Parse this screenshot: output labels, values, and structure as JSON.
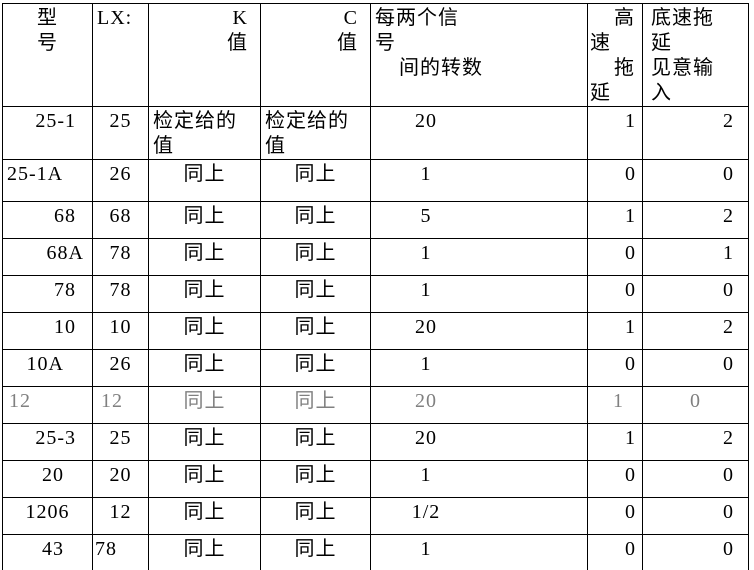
{
  "colors": {
    "text": "#000000",
    "muted_row_text": "#808080",
    "border": "#000000",
    "background": "#ffffff"
  },
  "table": {
    "headers": [
      {
        "t": "型\n号",
        "a": "c"
      },
      {
        "t": "LX:",
        "a": "l4"
      },
      {
        "t": "K\n值",
        "a": "r12"
      },
      {
        "t": "C\n值",
        "a": "r12"
      },
      {
        "t": "每两个信\n号\n    间的转数",
        "a": "l4"
      },
      {
        "t": "    高\n速\n    拖\n延",
        "a": "l2"
      },
      {
        "t": "底速拖\n延\n见意输\n入",
        "a": "l8"
      }
    ],
    "rows": [
      {
        "cells": [
          "25-1",
          "25",
          {
            "t": "检定给的\n值",
            "a": "l4"
          },
          {
            "t": "检定给的\n值",
            "a": "l4"
          },
          "20",
          "1",
          "2"
        ]
      },
      {
        "cells": [
          {
            "t": "25-1A",
            "a": "l4"
          },
          "26",
          "同上",
          "同上",
          "1",
          "0",
          "0"
        ]
      },
      {
        "cells": [
          "68",
          "68",
          "同上",
          "同上",
          "5",
          "1",
          "2"
        ]
      },
      {
        "cells": [
          {
            "t": "68A",
            "a": "r8"
          },
          "78",
          "同上",
          "同上",
          "1",
          "0",
          "1"
        ]
      },
      {
        "cells": [
          "78",
          "78",
          "同上",
          "同上",
          "1",
          "0",
          "0"
        ]
      },
      {
        "cells": [
          "10",
          "10",
          "同上",
          "同上",
          "20",
          "1",
          "2"
        ]
      },
      {
        "cells": [
          {
            "t": "10A",
            "a": "r28"
          },
          "26",
          "同上",
          "同上",
          "1",
          "0",
          "0"
        ]
      },
      {
        "gray": true,
        "cells": [
          {
            "t": "12",
            "a": "l6"
          },
          {
            "t": "12",
            "a": "l8"
          },
          "同上",
          "同上",
          "20",
          {
            "t": "1",
            "a": "r18"
          },
          {
            "t": "0",
            "a": "c"
          }
        ]
      },
      {
        "cells": [
          "25-3",
          "25",
          "同上",
          "同上",
          "20",
          "1",
          "2"
        ]
      },
      {
        "cells": [
          {
            "t": "20",
            "a": "r28"
          },
          "20",
          "同上",
          "同上",
          "1",
          "0",
          "0"
        ]
      },
      {
        "cells": [
          {
            "t": "1206",
            "a": "c"
          },
          "12",
          "同上",
          "同上",
          "1/2",
          "0",
          "0"
        ]
      },
      {
        "cells": [
          {
            "t": "43",
            "a": "r28"
          },
          {
            "t": "78",
            "a": "l2"
          },
          "同上",
          "同上",
          "1",
          "0",
          "0"
        ]
      }
    ]
  }
}
